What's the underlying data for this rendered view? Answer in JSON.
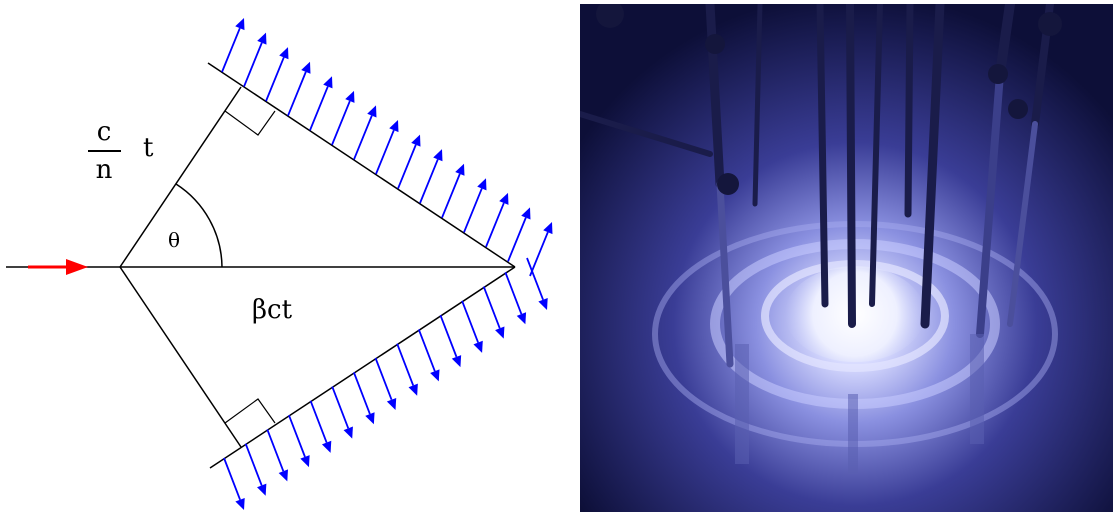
{
  "diagram": {
    "labels": {
      "numerator": "c",
      "denominator": "n",
      "time": "t",
      "angle": "θ",
      "path": "βct"
    },
    "colors": {
      "particle_arrow": "#ff0000",
      "wave_arrows": "#0000ff",
      "lines": "#000000"
    }
  },
  "photo": {
    "subject": "cherenkov-reactor-glow",
    "colors": {
      "background": "#0d0f38",
      "glow_center": "#f2f3ff",
      "glow_mid": "#7d84d8",
      "glow_outer": "#2c2f86"
    }
  }
}
